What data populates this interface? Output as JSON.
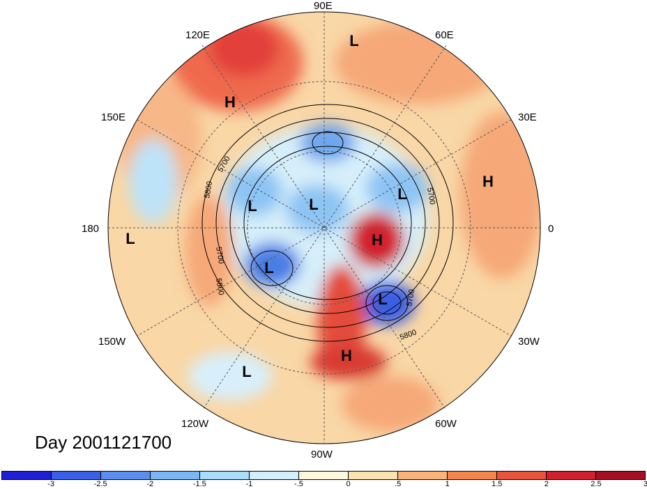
{
  "title": "Day 2001121700",
  "longitude_labels": {
    "top": "90E",
    "upper_left": "120E",
    "upper_right": "60E",
    "left_upper": "150E",
    "right_upper": "30E",
    "left": "180",
    "right": "0",
    "left_lower": "150W",
    "right_lower": "30W",
    "lower_left": "120W",
    "lower_right": "60W",
    "bottom": "90W"
  },
  "contour_labels": [
    "5700",
    "5800",
    "5700",
    "5800",
    "5700",
    "5700",
    "5800"
  ],
  "pressure_centers": [
    "H",
    "L",
    "L",
    "L",
    "H",
    "L",
    "L",
    "H",
    "L",
    "L",
    "H",
    "L"
  ],
  "colorbar": {
    "colors": [
      "#1f1fd6",
      "#3a5fe8",
      "#5a8ff0",
      "#7ab8f5",
      "#a8dcfa",
      "#d2effc",
      "#fdf9dc",
      "#fbe3b1",
      "#f8b47a",
      "#f3864f",
      "#e9543c",
      "#d0202c",
      "#a50f24"
    ],
    "ticks": [
      "-3",
      "-2.5",
      "-2",
      "-1.5",
      "-1",
      "-.5",
      "0",
      ".5",
      "1",
      "1.5",
      "2",
      "2.5",
      "3"
    ]
  }
}
